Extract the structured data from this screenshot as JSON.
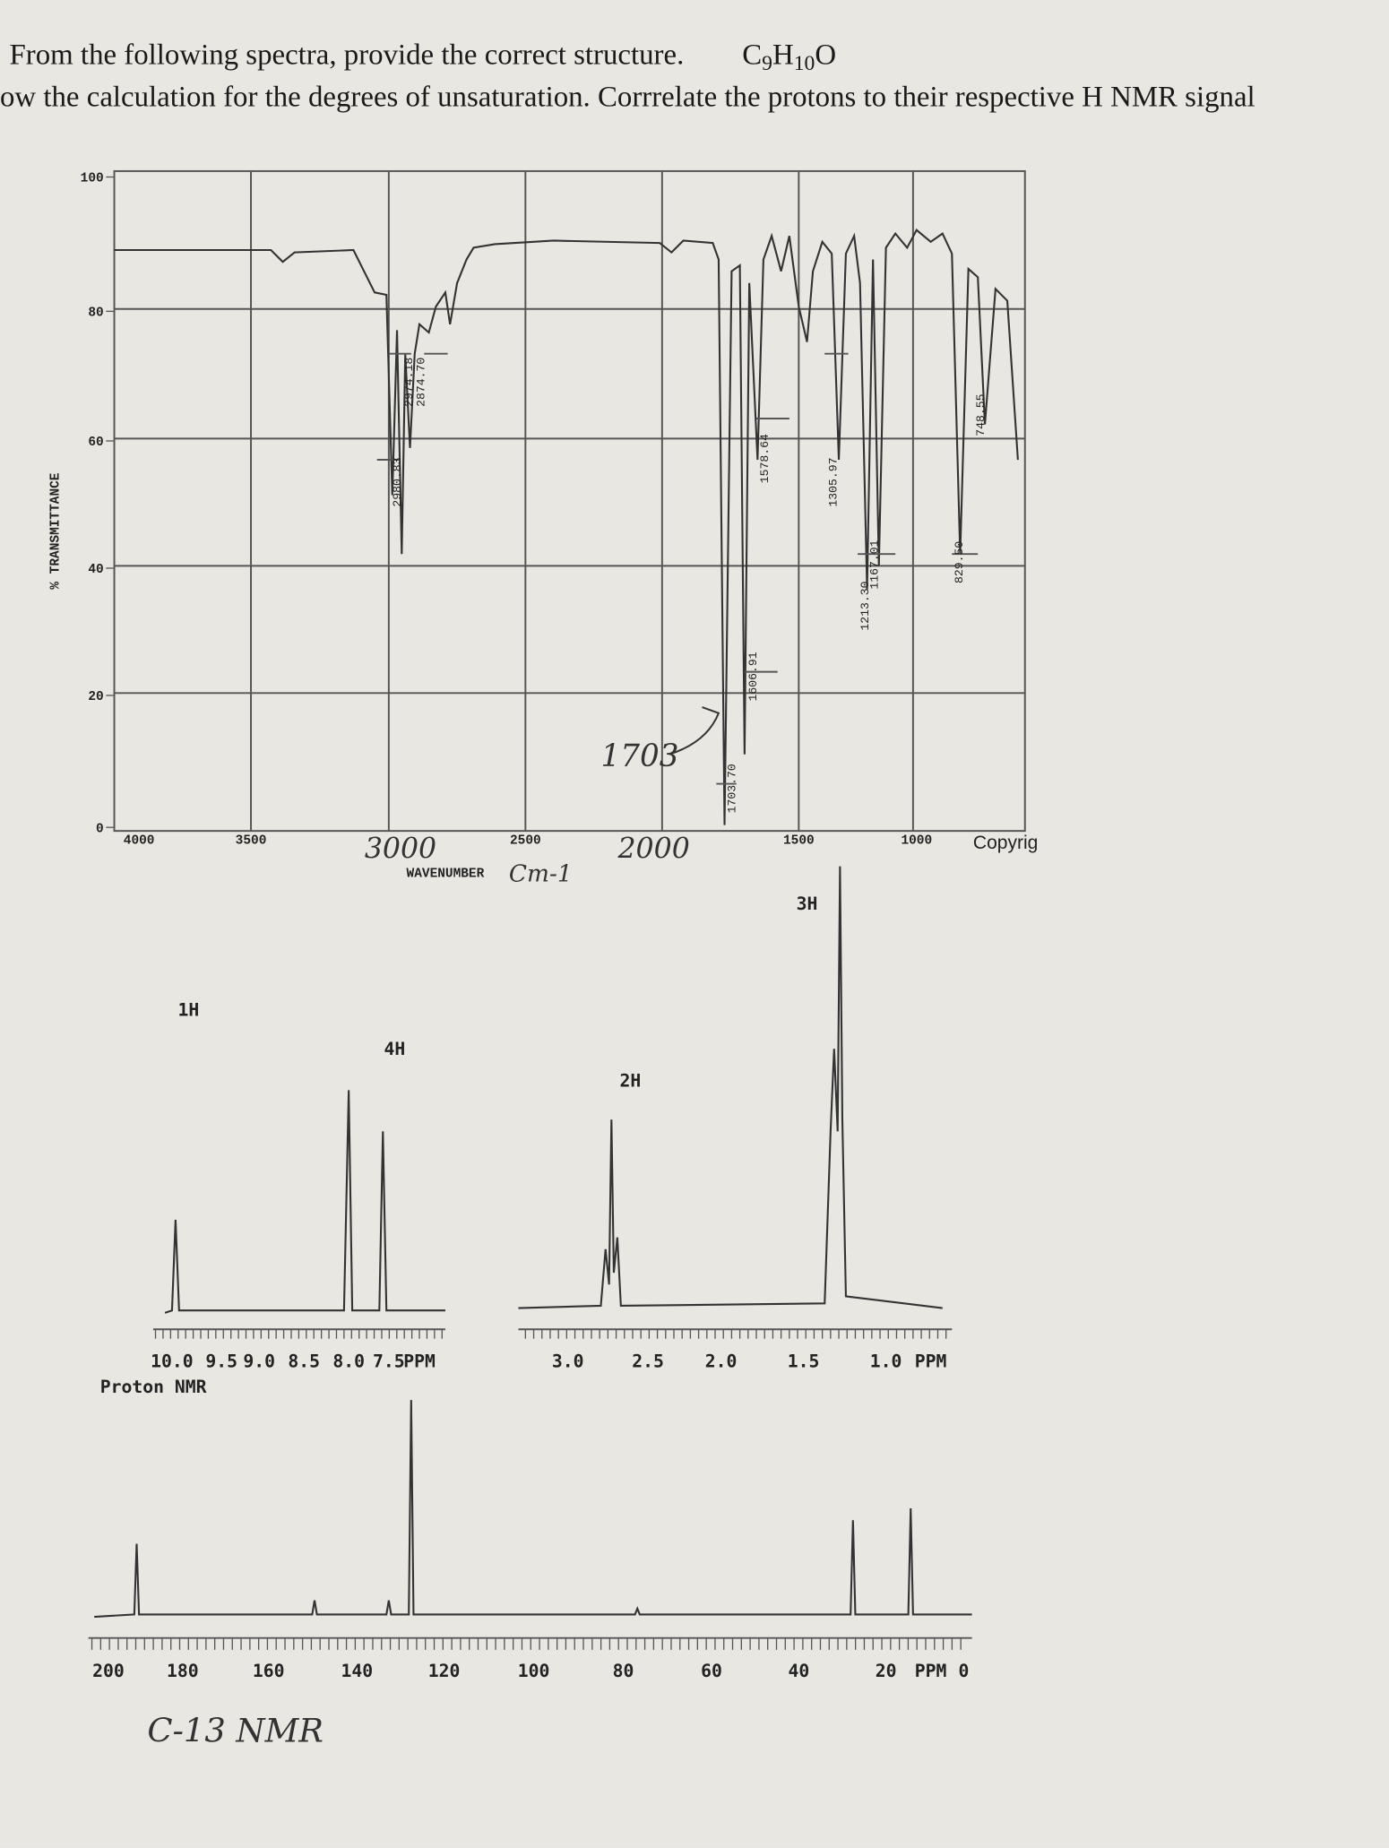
{
  "header": {
    "line1": "From the following spectra, provide the correct structure.",
    "formula": [
      "C",
      "9",
      "H",
      "10",
      "O"
    ],
    "line2": "ow the calculation for the degrees of unsaturation. Corrrelate the protons to their respective H NMR signal"
  },
  "ir": {
    "y_axis_label": "% TRANSMITTANCE",
    "y_ticks": [
      "100",
      "80",
      "60",
      "40",
      "20",
      "0"
    ],
    "x_ticks": [
      "4000",
      "3500",
      "3000",
      "2500",
      "2000",
      "1500",
      "1000"
    ],
    "x_axis_label": "WAVENUMBER",
    "unit": "Cm-1",
    "copyright": "Copyrig",
    "handwritten_peak": "1703",
    "peak_labels": [
      "2980.83",
      "2974.18",
      "2874.70",
      "1703.70",
      "1606.91",
      "1578.64",
      "1305.97",
      "1213.30",
      "1167.01",
      "829.50",
      "748.55"
    ]
  },
  "hnmr": {
    "integrations": [
      "1H",
      "4H",
      "2H",
      "3H"
    ],
    "left_ticks": [
      "10.0",
      "9.5",
      "9.0",
      "8.5",
      "8.0",
      "7.5",
      "PPM"
    ],
    "right_ticks": [
      "3.0",
      "2.5",
      "2.0",
      "1.5",
      "1.0",
      "PPM"
    ],
    "title": "Proton NMR"
  },
  "cnmr": {
    "ticks": [
      "200",
      "180",
      "160",
      "140",
      "120",
      "100",
      "80",
      "60",
      "40",
      "20",
      "PPM",
      "0"
    ],
    "label": "C-13 NMR"
  }
}
